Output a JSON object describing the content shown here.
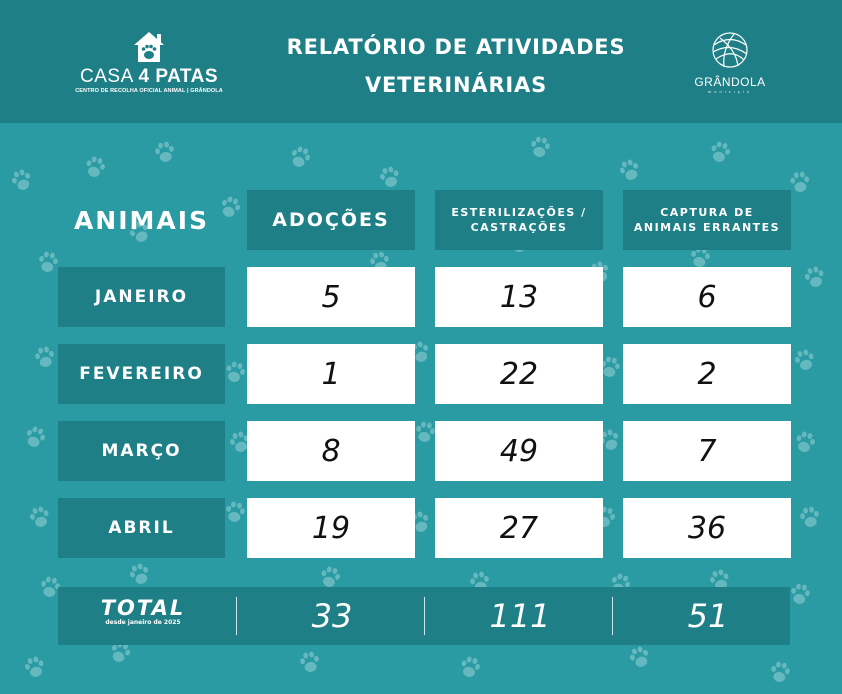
{
  "header": {
    "brand": {
      "name_light": "CASA",
      "name_bold": "4 PATAS",
      "subtitle": "CENTRO DE RECOLHA OFICIAL ANIMAL | GRÂNDOLA"
    },
    "title_line1": "RELATÓRIO DE ATIVIDADES",
    "title_line2": "VETERINÁRIAS",
    "municipality": {
      "name": "GRÂNDOLA",
      "sub": "município"
    }
  },
  "table": {
    "corner_label": "ANIMAIS",
    "columns": [
      "ADOÇÕES",
      "ESTERILIZAÇÕES / CASTRAÇÕES",
      "CAPTURA DE ANIMAIS ERRANTES"
    ],
    "column_lines": [
      [
        "ADOÇÕES"
      ],
      [
        "ESTERILIZAÇÕES /",
        "CASTRAÇÕES"
      ],
      [
        "CAPTURA DE",
        "ANIMAIS ERRANTES"
      ]
    ],
    "rows": [
      {
        "month": "JANEIRO",
        "values": [
          "5",
          "13",
          "6"
        ]
      },
      {
        "month": "FEVEREIRO",
        "values": [
          "1",
          "22",
          "2"
        ]
      },
      {
        "month": "MARÇO",
        "values": [
          "8",
          "49",
          "7"
        ]
      },
      {
        "month": "ABRIL",
        "values": [
          "19",
          "27",
          "36"
        ]
      }
    ],
    "total": {
      "label": "TOTAL",
      "sublabel": "desde janeiro de 2025",
      "values": [
        "33",
        "111",
        "51"
      ]
    }
  },
  "colors": {
    "background": "#2a9aa3",
    "header": "#1e7f86",
    "cell_bg": "#ffffff",
    "paw": "#79c3c8"
  },
  "icons": [
    "house-paw-icon",
    "grandola-globe-icon",
    "paw-icon"
  ]
}
